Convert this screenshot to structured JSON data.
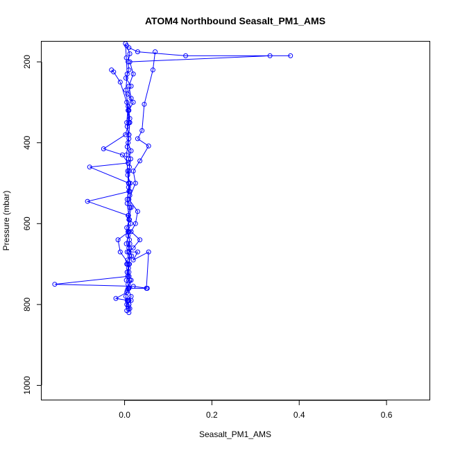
{
  "chart_data": {
    "type": "line",
    "title": "ATOM4 Northbound Seasalt_PM1_AMS",
    "xlabel": "Seasalt_PM1_AMS",
    "ylabel": "Pressure (mbar)",
    "xlim": [
      -0.19,
      0.7
    ],
    "ylim": [
      1037,
      150
    ],
    "y_reversed": true,
    "x_ticks": [
      0.0,
      0.2,
      0.4,
      0.6
    ],
    "x_tick_labels": [
      "0.0",
      "0.2",
      "0.4",
      "0.6"
    ],
    "y_ticks": [
      200,
      400,
      600,
      800,
      1000
    ],
    "y_tick_labels": [
      "200",
      "400",
      "600",
      "800",
      "1000"
    ],
    "grid": false,
    "legend": "none",
    "marker": "open-circle",
    "color": "#0000ff",
    "series": [
      {
        "x": [
          0.005,
          0.012,
          0.008,
          0.01,
          0.003,
          0.015,
          0.007,
          0.02,
          0.01,
          0.012,
          0.006,
          0.01,
          0.008,
          0.015,
          0.009,
          0.011,
          0.007,
          0.013,
          0.01,
          0.006,
          0.012,
          0.009,
          0.014,
          0.008,
          0.011,
          0.01,
          0.016,
          0.007,
          0.01,
          0.012,
          0.008,
          0.015,
          0.006,
          0.01,
          0.009
        ],
        "y": [
          160,
          180,
          200,
          220,
          240,
          260,
          280,
          300,
          320,
          340,
          360,
          380,
          400,
          420,
          440,
          460,
          480,
          500,
          520,
          540,
          560,
          580,
          600,
          620,
          640,
          660,
          680,
          700,
          720,
          740,
          760,
          780,
          790,
          800,
          810
        ]
      },
      {
        "x": [
          0.01,
          0.03,
          0.14,
          0.38,
          0.333,
          0.012,
          0.02,
          0.01,
          0.015,
          0.008,
          0.012,
          0.01,
          0.006,
          0.014,
          0.01,
          0.009,
          0.012,
          0.015,
          0.01,
          0.008,
          0.012,
          0.01,
          0.011,
          0.007
        ],
        "y": [
          165,
          175,
          185,
          185,
          185,
          200,
          230,
          260,
          290,
          320,
          350,
          380,
          410,
          440,
          470,
          500,
          530,
          560,
          590,
          620,
          650,
          670,
          700,
          730
        ]
      },
      {
        "x": [
          -0.03,
          -0.025,
          -0.01,
          0.005,
          0.01,
          0.002,
          -0.048,
          -0.005,
          0.008,
          -0.08,
          0.01,
          0.012,
          -0.085,
          0.008,
          0.01,
          -0.015,
          -0.01,
          0.01,
          0.006
        ],
        "y": [
          220,
          225,
          250,
          300,
          350,
          380,
          415,
          430,
          450,
          460,
          500,
          520,
          545,
          580,
          620,
          640,
          670,
          700,
          720
        ]
      },
      {
        "x": [
          0.07,
          0.065,
          0.045,
          0.04,
          0.03,
          0.055,
          0.035,
          0.02,
          0.025,
          0.01,
          0.03,
          0.025,
          0.015,
          0.035,
          0.02,
          0.01,
          0.03,
          0.02,
          0.055,
          0.05,
          0.01,
          0.015
        ],
        "y": [
          175,
          220,
          305,
          370,
          390,
          408,
          445,
          470,
          500,
          540,
          570,
          600,
          620,
          640,
          660,
          670,
          670,
          690,
          670,
          760,
          760,
          740
        ]
      },
      {
        "x": [
          0.01,
          -0.16,
          0.02,
          0.052,
          0.01,
          0.005,
          -0.02,
          0.008,
          0.01,
          0.015,
          0.005,
          0.01,
          0.008,
          0.012,
          0.01
        ],
        "y": [
          730,
          750,
          755,
          760,
          760,
          770,
          785,
          790,
          790,
          790,
          800,
          800,
          805,
          810,
          820
        ]
      },
      {
        "x": [
          0.002,
          0.004,
          0.006,
          0.003,
          0.008,
          0.005,
          0.01,
          0.004,
          0.007,
          0.009,
          0.006,
          0.011,
          0.005,
          0.008,
          0.004,
          0.01,
          0.006,
          0.012,
          0.007,
          0.005,
          0.009,
          0.006,
          0.01,
          0.004,
          0.008,
          0.006,
          0.003,
          0.005
        ],
        "y": [
          155,
          190,
          230,
          270,
          310,
          350,
          390,
          430,
          470,
          510,
          550,
          590,
          610,
          630,
          650,
          660,
          670,
          680,
          690,
          700,
          710,
          720,
          730,
          740,
          750,
          765,
          780,
          815
        ]
      }
    ]
  }
}
